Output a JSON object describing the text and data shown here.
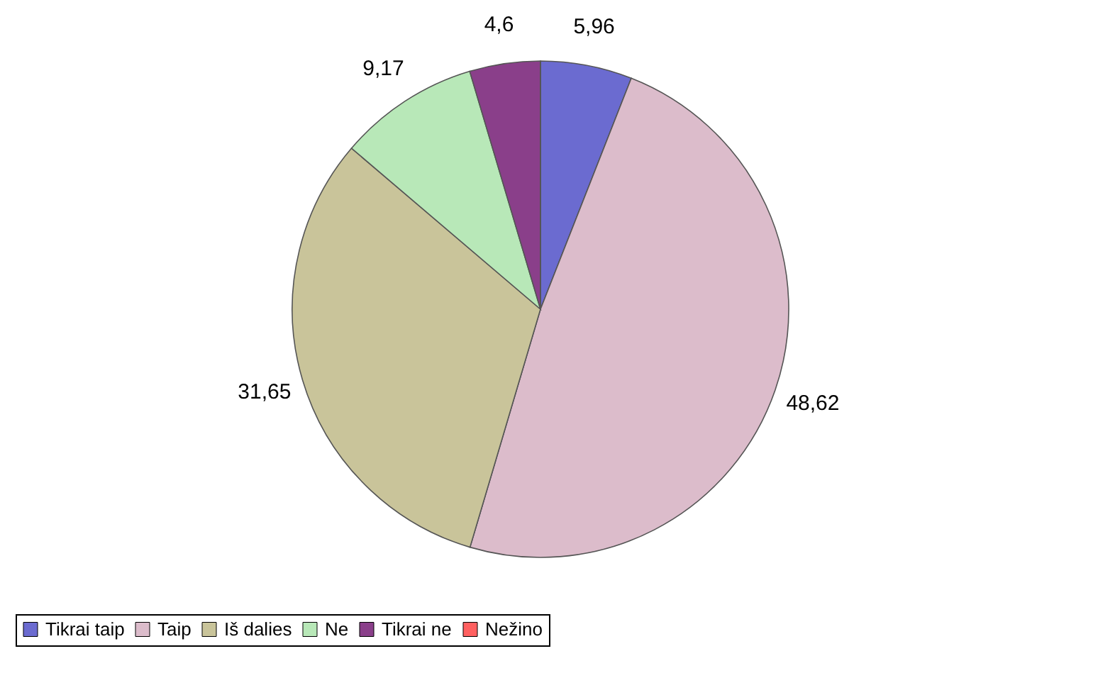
{
  "chart_data": {
    "type": "pie",
    "categories": [
      "Tikrai taip",
      "Taip",
      "Iš dalies",
      "Ne",
      "Tikrai ne",
      "Nežino"
    ],
    "values": [
      5.96,
      48.62,
      31.65,
      9.17,
      4.6,
      0
    ],
    "value_labels": [
      "5,96",
      "48,62",
      "31,65",
      "9,17",
      "4,6",
      null
    ],
    "colors": [
      "#6b6bd0",
      "#dcbccb",
      "#c9c49a",
      "#b8e8b8",
      "#8a3f8a",
      "#ff6060"
    ],
    "legend": "bottom"
  }
}
